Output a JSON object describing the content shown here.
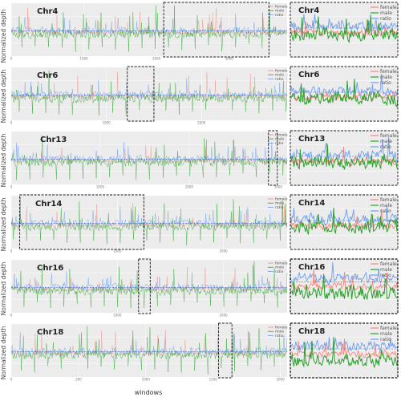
{
  "figure": {
    "xlabel": "windows",
    "ylabel": "Normalized depth"
  },
  "legend_labels": [
    "female",
    "male",
    "ratio"
  ],
  "colors": {
    "female": "#f4877c",
    "male": "#2aa12a",
    "ratio": "#6f9ff0",
    "panel_bg": "#ececec",
    "gridline": "#ffffff",
    "baseline": "#3b6fd0"
  },
  "chart_data": [
    {
      "type": "line",
      "chromosome": "Chr4",
      "x_ticks": [
        0,
        1000,
        2000,
        3000
      ],
      "xlim": [
        0,
        3800
      ],
      "highlight_window": [
        2100,
        3550
      ],
      "has_zoom_panel": true,
      "series": [
        "female",
        "male",
        "ratio"
      ]
    },
    {
      "type": "line",
      "chromosome": "Chr6",
      "x_ticks": [
        0,
        1000,
        2000
      ],
      "xlim": [
        0,
        2900
      ],
      "highlight_window": [
        1220,
        1500
      ],
      "has_zoom_panel": true,
      "series": [
        "female",
        "male",
        "ratio"
      ]
    },
    {
      "type": "line",
      "chromosome": "Chr13",
      "x_ticks": [
        0,
        1000,
        2000,
        3000
      ],
      "xlim": [
        0,
        3100
      ],
      "highlight_window": [
        2890,
        2990
      ],
      "has_zoom_panel": true,
      "series": [
        "female",
        "male",
        "ratio"
      ]
    },
    {
      "type": "line",
      "chromosome": "Chr14",
      "x_ticks": [
        0,
        1000,
        2000
      ],
      "xlim": [
        0,
        2600
      ],
      "highlight_window": [
        80,
        1250
      ],
      "has_zoom_panel": true,
      "series": [
        "female",
        "male",
        "ratio"
      ]
    },
    {
      "type": "line",
      "chromosome": "Chr16",
      "x_ticks": [
        0,
        1000,
        2000
      ],
      "xlim": [
        0,
        2600
      ],
      "highlight_window": [
        1200,
        1310
      ],
      "has_zoom_panel": true,
      "series": [
        "female",
        "male",
        "ratio"
      ]
    },
    {
      "type": "line",
      "chromosome": "Chr18",
      "x_ticks": [
        0,
        500,
        1000,
        1500,
        2000
      ],
      "xlim": [
        0,
        2050
      ],
      "highlight_window": [
        1540,
        1640
      ],
      "has_zoom_panel": true,
      "series": [
        "female",
        "male",
        "ratio"
      ]
    }
  ]
}
